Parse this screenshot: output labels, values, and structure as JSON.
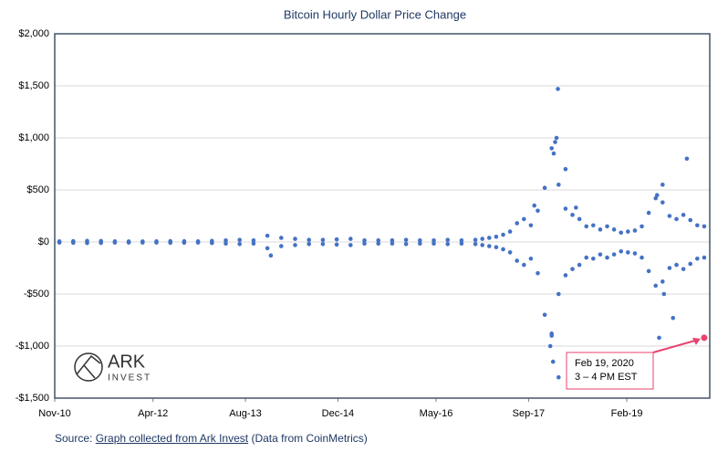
{
  "chart_data": {
    "type": "scatter",
    "title": "Bitcoin Hourly Dollar Price Change",
    "color": "#4472c4",
    "grid": true,
    "xlim": [
      2010.833,
      2020.28
    ],
    "xticks": [
      {
        "value": 2010.833,
        "label": "Nov-10"
      },
      {
        "value": 2012.25,
        "label": "Apr-12"
      },
      {
        "value": 2013.583,
        "label": "Aug-13"
      },
      {
        "value": 2014.917,
        "label": "Dec-14"
      },
      {
        "value": 2016.333,
        "label": "May-16"
      },
      {
        "value": 2017.667,
        "label": "Sep-17"
      },
      {
        "value": 2019.083,
        "label": "Feb-19"
      }
    ],
    "ylim": [
      -1500,
      2000
    ],
    "yticks": [
      {
        "value": -1500,
        "label": "-$1,500"
      },
      {
        "value": -1000,
        "label": "-$1,000"
      },
      {
        "value": -500,
        "label": "-$500"
      },
      {
        "value": 0,
        "label": "$0"
      },
      {
        "value": 500,
        "label": "$500"
      },
      {
        "value": 1000,
        "label": "$1,000"
      },
      {
        "value": 1500,
        "label": "$1,500"
      },
      {
        "value": 2000,
        "label": "$2,000"
      }
    ],
    "x": [
      2010.9,
      2010.9,
      2011.1,
      2011.1,
      2011.3,
      2011.3,
      2011.5,
      2011.5,
      2011.7,
      2011.7,
      2011.9,
      2011.9,
      2012.1,
      2012.1,
      2012.3,
      2012.3,
      2012.5,
      2012.5,
      2012.7,
      2012.7,
      2012.9,
      2012.9,
      2013.1,
      2013.1,
      2013.3,
      2013.3,
      2013.5,
      2013.5,
      2013.7,
      2013.7,
      2013.9,
      2013.9,
      2014.1,
      2014.1,
      2014.3,
      2014.3,
      2014.5,
      2014.5,
      2014.7,
      2014.7,
      2014.9,
      2014.9,
      2015.1,
      2015.1,
      2015.3,
      2015.3,
      2015.5,
      2015.5,
      2015.7,
      2015.7,
      2015.9,
      2015.9,
      2016.1,
      2016.1,
      2016.3,
      2016.3,
      2016.5,
      2016.5,
      2016.7,
      2016.7,
      2016.9,
      2016.9,
      2017.0,
      2017.0,
      2017.1,
      2017.1,
      2017.2,
      2017.2,
      2017.3,
      2017.3,
      2017.4,
      2017.4,
      2017.5,
      2017.5,
      2017.6,
      2017.6,
      2017.7,
      2017.7,
      2017.8,
      2017.8,
      2017.9,
      2017.9,
      2018.0,
      2018.0,
      2018.1,
      2018.1,
      2018.2,
      2018.2,
      2018.3,
      2018.3,
      2018.4,
      2018.4,
      2018.5,
      2018.5,
      2018.6,
      2018.6,
      2018.7,
      2018.7,
      2018.8,
      2018.8,
      2018.9,
      2018.9,
      2019.0,
      2019.0,
      2019.1,
      2019.1,
      2019.2,
      2019.2,
      2019.3,
      2019.3,
      2019.4,
      2019.4,
      2019.5,
      2019.5,
      2019.6,
      2019.6,
      2019.7,
      2019.7,
      2019.8,
      2019.8,
      2019.9,
      2019.9,
      2020.0,
      2020.0,
      2020.1,
      2020.1,
      2020.2,
      2020.2,
      2018.09,
      2018.07,
      2018.05,
      2018.03,
      2018.2,
      2013.95,
      2018.1,
      2018.02,
      2017.98,
      2018.0,
      2019.6,
      2019.95,
      2019.52,
      2019.55,
      2019.75,
      2019.62,
      2017.75,
      2018.35
    ],
    "values": [
      6,
      -6,
      8,
      -8,
      10,
      -10,
      9,
      -9,
      6,
      -6,
      5,
      -5,
      5,
      -5,
      6,
      -6,
      8,
      -8,
      7,
      -7,
      6,
      -6,
      10,
      -10,
      15,
      -15,
      20,
      -20,
      15,
      -15,
      60,
      -60,
      40,
      -40,
      30,
      -30,
      20,
      -20,
      20,
      -20,
      25,
      -25,
      30,
      -30,
      15,
      -15,
      15,
      -15,
      15,
      -15,
      20,
      -20,
      15,
      -15,
      15,
      -15,
      20,
      -20,
      15,
      -15,
      20,
      -20,
      30,
      -30,
      40,
      -40,
      50,
      -50,
      70,
      -70,
      100,
      -100,
      180,
      -180,
      220,
      -220,
      160,
      -160,
      300,
      -300,
      520,
      -700,
      900,
      -900,
      550,
      -500,
      320,
      -320,
      260,
      -260,
      220,
      -220,
      150,
      -150,
      160,
      -160,
      120,
      -120,
      150,
      -150,
      120,
      -120,
      90,
      -90,
      100,
      -100,
      110,
      -110,
      150,
      -150,
      280,
      -280,
      420,
      -420,
      380,
      -380,
      250,
      -250,
      220,
      -220,
      260,
      -260,
      210,
      -210,
      160,
      -160,
      150,
      -150,
      1470,
      1000,
      960,
      850,
      700,
      -130,
      -1300,
      -1150,
      -1000,
      -880,
      550,
      800,
      450,
      -920,
      -730,
      -500,
      350,
      330
    ],
    "annotation": {
      "lines": [
        "Feb 19, 2020",
        "3 – 4 PM EST"
      ],
      "x": 2020.2,
      "value": -920,
      "color": "#e8436e"
    },
    "logo": {
      "name": "ARK",
      "sub": "INVEST"
    },
    "source": {
      "prefix": "Source:",
      "link": "Graph collected from Ark Invest",
      "suffix": "(Data from CoinMetrics)"
    }
  }
}
